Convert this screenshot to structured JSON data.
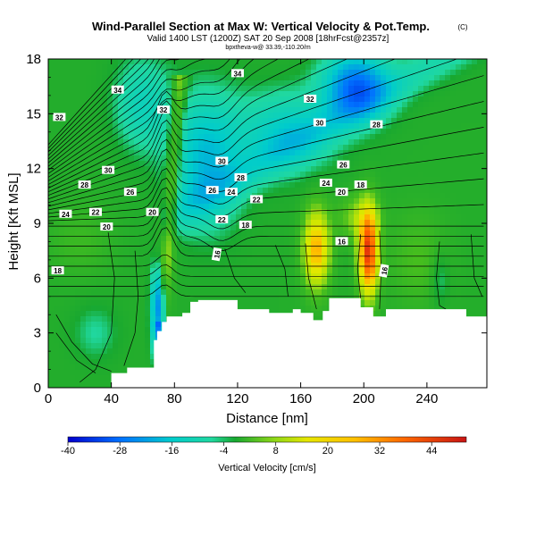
{
  "chart_data": {
    "type": "heatmap",
    "title": "Wind-Parallel Section at Max W: Vertical Velocity & Pot.Temp.",
    "title_mark": "(C)",
    "subtitle": "Valid 1400 LST (1200Z) SAT 20 Sep 2008 [18hrFcst@2357z]",
    "subsubtitle": "bpxtheva-w@ 33.39,-110.20/m",
    "xlabel": "Distance [nm]",
    "ylabel": "Height [Kft MSL]",
    "xlim": [
      0,
      278
    ],
    "ylim": [
      0,
      18
    ],
    "xticks": [
      "0",
      "40",
      "80",
      "120",
      "160",
      "200",
      "240"
    ],
    "yticks": [
      "0",
      "3",
      "6",
      "9",
      "12",
      "15",
      "18"
    ],
    "colorbar": {
      "label": "Vertical Velocity [cm/s]",
      "range": [
        -40,
        52
      ],
      "ticks": [
        "-40",
        "-28",
        "-16",
        "-4",
        "8",
        "20",
        "32",
        "44"
      ]
    },
    "velocity_features": [
      {
        "name": "background",
        "value": -2
      },
      {
        "name": "updraft plume",
        "x": 75,
        "y": 12,
        "value": 10
      },
      {
        "name": "downdraft",
        "x": 70,
        "y": 4,
        "value": -32
      },
      {
        "name": "upper downdraft",
        "x": 110,
        "y": 13,
        "value": -18
      },
      {
        "name": "upper downdraft",
        "x": 195,
        "y": 16.5,
        "value": -30
      },
      {
        "name": "updraft",
        "x": 170,
        "y": 7.5,
        "value": 30
      },
      {
        "name": "updraft",
        "x": 202,
        "y": 7.5,
        "value": 46
      }
    ],
    "isentrope_labels": [
      "34",
      "34",
      "32",
      "32",
      "32",
      "30",
      "30",
      "30",
      "28",
      "28",
      "28",
      "26",
      "26",
      "26",
      "24",
      "24",
      "24",
      "22",
      "22",
      "22",
      "20",
      "20",
      "20",
      "18",
      "18",
      "18",
      "16",
      "16",
      "16"
    ],
    "terrain": {
      "x": [
        0,
        10,
        30,
        40,
        50,
        52,
        65,
        67,
        69,
        72,
        75,
        80,
        85,
        90,
        95,
        110,
        120,
        130,
        140,
        145,
        155,
        160,
        168,
        174,
        178,
        182,
        190,
        198,
        206,
        214,
        240,
        265,
        278
      ],
      "height": [
        0,
        0,
        0,
        0.8,
        1.1,
        1.1,
        1.1,
        2.6,
        3.1,
        3.6,
        3.9,
        3.9,
        4.1,
        4.7,
        4.8,
        4.8,
        4.3,
        4.3,
        4.1,
        4.1,
        4.3,
        4.1,
        3.7,
        4.2,
        4.9,
        4.9,
        4.9,
        4.4,
        3.9,
        4.3,
        4.3,
        3.9,
        3.7
      ]
    }
  }
}
